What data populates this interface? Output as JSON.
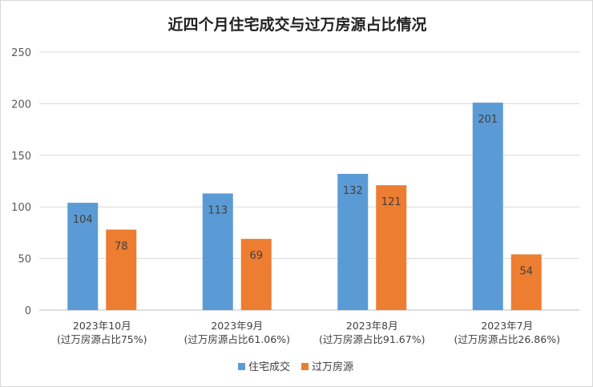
{
  "chart_data": {
    "type": "bar",
    "title": "近四个月住宅成交与过万房源占比情况",
    "categories": [
      [
        "2023年10月",
        "(过万房源占比75%)"
      ],
      [
        "2023年9月",
        "(过万房源占比61.06%)"
      ],
      [
        "2023年8月",
        "(过万房源占比91.67%)"
      ],
      [
        "2023年7月",
        "(过万房源占比26.86%)"
      ]
    ],
    "series": [
      {
        "name": "住宅成交",
        "color": "#5b9bd5",
        "values": [
          104,
          113,
          132,
          201
        ]
      },
      {
        "name": "过万房源",
        "color": "#ed7d31",
        "values": [
          78,
          69,
          121,
          54
        ]
      }
    ],
    "ylim": [
      0,
      250
    ],
    "yticks": [
      0,
      50,
      100,
      150,
      200,
      250
    ],
    "grid": true,
    "legend": "bottom",
    "xlabel": "",
    "ylabel": ""
  }
}
